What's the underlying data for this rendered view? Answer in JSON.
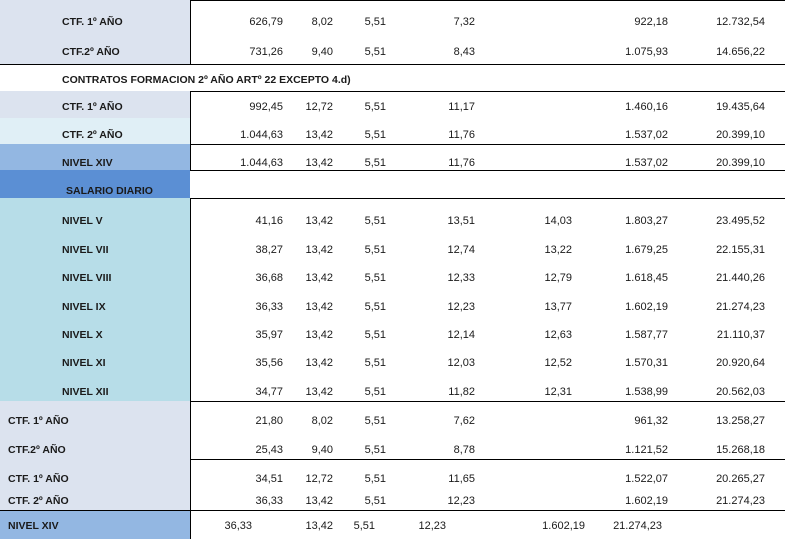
{
  "colors": {
    "gray_blue": "#dce3ef",
    "light_cyan": "#e0eff6",
    "mid_blue": "#93b7e2",
    "strong_blue": "#5b8fd4",
    "teal": "#b7dde8",
    "white": "#ffffff"
  },
  "rows": [
    {
      "label": "CTF. 1º AÑO",
      "cells": [
        "626,79",
        "8,02",
        "5,51",
        "7,32",
        "",
        "922,18",
        "12.732,54"
      ]
    },
    {
      "label": "CTF.2º AÑO",
      "cells": [
        "731,26",
        "9,40",
        "5,51",
        "8,43",
        "",
        "1.075,93",
        "14.656,22"
      ]
    },
    {
      "heading": "CONTRATOS  FORMACION 2º AÑO ARTº 22 EXCEPTO 4.d)"
    },
    {
      "label": "CTF. 1º AÑO",
      "cells": [
        "992,45",
        "12,72",
        "5,51",
        "11,17",
        "",
        "1.460,16",
        "19.435,64"
      ]
    },
    {
      "label": "CTF. 2º AÑO",
      "cells": [
        "1.044,63",
        "13,42",
        "5,51",
        "11,76",
        "",
        "1.537,02",
        "20.399,10"
      ]
    },
    {
      "label": "NIVEL XIV",
      "cells": [
        "1.044,63",
        "13,42",
        "5,51",
        "11,76",
        "",
        "1.537,02",
        "20.399,10"
      ]
    },
    {
      "section": "SALARIO DIARIO"
    },
    {
      "label": "NIVEL  V",
      "cells": [
        "41,16",
        "13,42",
        "5,51",
        "13,51",
        "14,03",
        "1.803,27",
        "23.495,52"
      ]
    },
    {
      "label": "NIVEL VII",
      "cells": [
        "38,27",
        "13,42",
        "5,51",
        "12,74",
        "13,22",
        "1.679,25",
        "22.155,31"
      ]
    },
    {
      "label": "NIVEL  VIII",
      "cells": [
        "36,68",
        "13,42",
        "5,51",
        "12,33",
        "12,79",
        "1.618,45",
        "21.440,26"
      ]
    },
    {
      "label": "NIVEL  IX",
      "cells": [
        "36,33",
        "13,42",
        "5,51",
        "12,23",
        "13,77",
        "1.602,19",
        "21.274,23"
      ]
    },
    {
      "label": "NIVEL  X",
      "cells": [
        "35,97",
        "13,42",
        "5,51",
        "12,14",
        "12,63",
        "1.587,77",
        "21.110,37"
      ]
    },
    {
      "label": "NIVEL  XI",
      "cells": [
        "35,56",
        "13,42",
        "5,51",
        "12,03",
        "12,52",
        "1.570,31",
        "20.920,64"
      ]
    },
    {
      "label": "NIVEL  XII",
      "cells": [
        "34,77",
        "13,42",
        "5,51",
        "11,82",
        "12,31",
        "1.538,99",
        "20.562,03"
      ]
    },
    {
      "label": "CTF. 1º AÑO",
      "cells": [
        "21,80",
        "8,02",
        "5,51",
        "7,62",
        "",
        "961,32",
        "13.258,27"
      ]
    },
    {
      "label": "CTF.2º AÑO",
      "cells": [
        "25,43",
        "9,40",
        "5,51",
        "8,78",
        "",
        "1.121,52",
        "15.268,18"
      ]
    },
    {
      "label": "CTF. 1º AÑO",
      "cells": [
        "34,51",
        "12,72",
        "5,51",
        "11,65",
        "",
        "1.522,07",
        "20.265,27"
      ]
    },
    {
      "label": "CTF. 2º AÑO",
      "cells": [
        "36,33",
        "13,42",
        "5,51",
        "12,23",
        "",
        "1.602,19",
        "21.274,23"
      ]
    },
    {
      "label": "NIVEL XIV",
      "cells": [
        "36,33",
        "13,42",
        "5,51",
        "12,23",
        "",
        "1.602,19",
        "21.274,23"
      ]
    }
  ]
}
